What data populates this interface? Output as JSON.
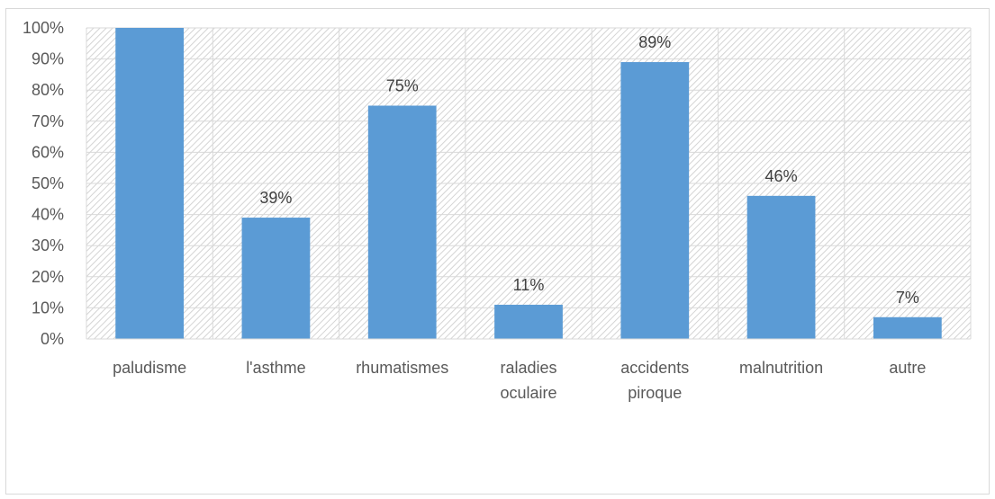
{
  "chart_data": {
    "type": "bar",
    "categories": [
      [
        "paludisme"
      ],
      [
        "l'asthme"
      ],
      [
        "rhumatismes"
      ],
      [
        "raladies",
        "oculaire"
      ],
      [
        "accidents",
        "piroque"
      ],
      [
        "malnutrition"
      ],
      [
        "autre"
      ]
    ],
    "values": [
      100,
      39,
      75,
      11,
      89,
      46,
      7
    ],
    "data_labels": [
      "",
      "39%",
      "75%",
      "11%",
      "89%",
      "46%",
      "7%"
    ],
    "ylim": [
      0,
      100
    ],
    "y_ticks": [
      0,
      10,
      20,
      30,
      40,
      50,
      60,
      70,
      80,
      90,
      100
    ],
    "y_tick_format": "%",
    "title": "",
    "xlabel": "",
    "ylabel": "",
    "grid": true,
    "bar_color": "#5b9bd5",
    "plot_background": "hatched-light-gray"
  }
}
